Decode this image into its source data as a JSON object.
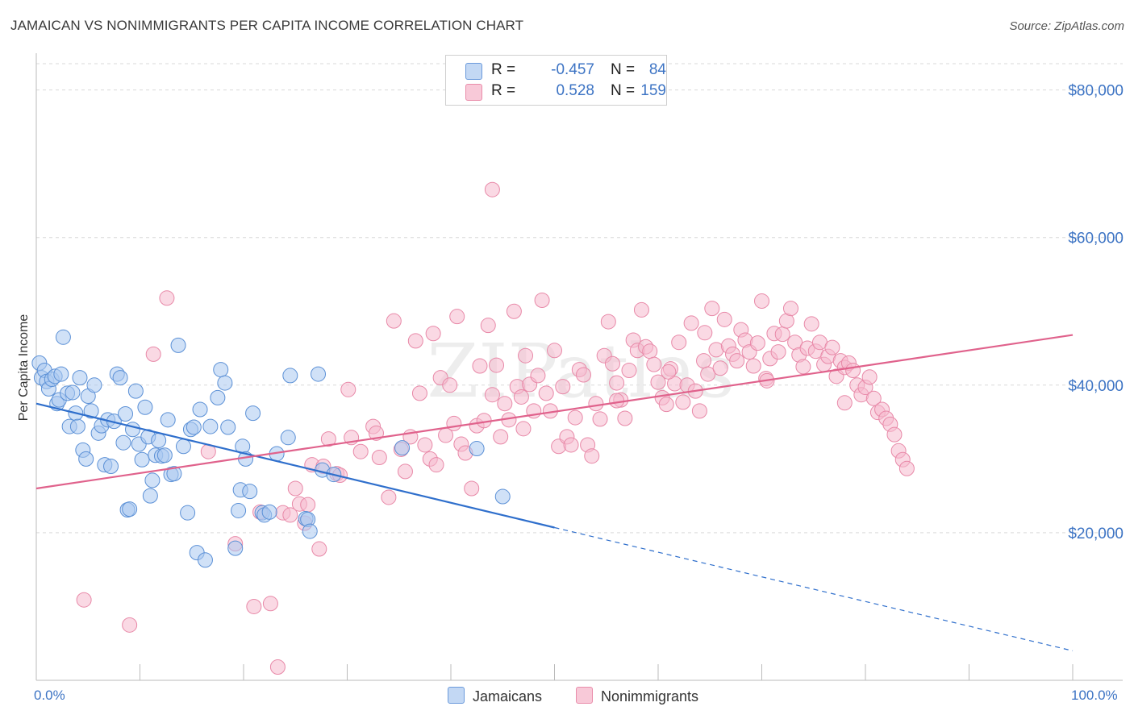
{
  "header": {
    "title": "JAMAICAN VS NONIMMIGRANTS PER CAPITA INCOME CORRELATION CHART",
    "source": "Source: ZipAtlas.com"
  },
  "legend_stats": [
    {
      "series": "Jamaicans",
      "r_label": "R =",
      "r_value": "-0.457",
      "n_label": "N =",
      "n_value": "84"
    },
    {
      "series": "Nonimmigrants",
      "r_label": "R =",
      "r_value": "0.528",
      "n_label": "N =",
      "n_value": "159"
    }
  ],
  "colors": {
    "jamaicans_fill": "#a9c8f0",
    "jamaicans_stroke": "#5b90d6",
    "jamaicans_line": "#2f6fcc",
    "nonimmigrants_fill": "#f6b9cd",
    "nonimmigrants_stroke": "#e889a8",
    "nonimmigrants_line": "#e0628c",
    "axis_label": "#3d74c4",
    "grid": "#d9d9d9"
  },
  "chart_data": {
    "type": "scatter",
    "xlabel": "",
    "ylabel": "Per Capita Income",
    "xlim": [
      0,
      100
    ],
    "ylim": [
      0,
      84000
    ],
    "x_tick_labels": [
      "0.0%",
      "100.0%"
    ],
    "y_ticks": [
      20000,
      40000,
      60000,
      80000
    ],
    "y_tick_labels": [
      "$20,000",
      "$40,000",
      "$60,000",
      "$80,000"
    ],
    "grid": true,
    "legend_position": "bottom-center",
    "watermark": "ZIPatlas",
    "series": [
      {
        "name": "Jamaicans",
        "trend": {
          "x": [
            0,
            50
          ],
          "y": [
            37500,
            20700
          ],
          "dashed_extension_to": [
            100,
            4000
          ]
        },
        "points": [
          [
            0.3,
            43000
          ],
          [
            0.5,
            41000
          ],
          [
            0.8,
            42000
          ],
          [
            1.0,
            40500
          ],
          [
            1.2,
            39500
          ],
          [
            1.5,
            40800
          ],
          [
            1.8,
            41200
          ],
          [
            2.0,
            37500
          ],
          [
            2.2,
            38000
          ],
          [
            2.4,
            41500
          ],
          [
            2.6,
            46500
          ],
          [
            3.0,
            38900
          ],
          [
            3.2,
            34400
          ],
          [
            3.5,
            39000
          ],
          [
            3.8,
            36200
          ],
          [
            4.0,
            34400
          ],
          [
            4.2,
            41000
          ],
          [
            4.5,
            31200
          ],
          [
            4.8,
            30000
          ],
          [
            5.0,
            38500
          ],
          [
            5.3,
            36500
          ],
          [
            5.6,
            40000
          ],
          [
            6.0,
            33500
          ],
          [
            6.3,
            34500
          ],
          [
            6.6,
            29200
          ],
          [
            6.9,
            35300
          ],
          [
            7.2,
            29000
          ],
          [
            7.5,
            35100
          ],
          [
            7.8,
            41500
          ],
          [
            8.1,
            41000
          ],
          [
            8.4,
            32200
          ],
          [
            8.6,
            36100
          ],
          [
            8.8,
            23100
          ],
          [
            9.0,
            23200
          ],
          [
            9.3,
            34000
          ],
          [
            9.6,
            39200
          ],
          [
            9.9,
            32000
          ],
          [
            10.2,
            29900
          ],
          [
            10.5,
            37000
          ],
          [
            10.8,
            33000
          ],
          [
            11.0,
            25000
          ],
          [
            11.2,
            27100
          ],
          [
            11.5,
            30500
          ],
          [
            11.8,
            32500
          ],
          [
            12.1,
            30400
          ],
          [
            12.4,
            30500
          ],
          [
            12.7,
            35300
          ],
          [
            13.0,
            27900
          ],
          [
            13.3,
            28000
          ],
          [
            13.7,
            45400
          ],
          [
            14.2,
            31700
          ],
          [
            14.6,
            22700
          ],
          [
            14.9,
            34000
          ],
          [
            15.2,
            34300
          ],
          [
            15.5,
            17300
          ],
          [
            15.8,
            36700
          ],
          [
            16.3,
            16300
          ],
          [
            16.8,
            34400
          ],
          [
            17.5,
            38300
          ],
          [
            17.8,
            42100
          ],
          [
            18.2,
            40300
          ],
          [
            18.5,
            34300
          ],
          [
            19.2,
            17900
          ],
          [
            19.5,
            23000
          ],
          [
            19.7,
            25800
          ],
          [
            19.9,
            31700
          ],
          [
            20.2,
            30000
          ],
          [
            20.6,
            25600
          ],
          [
            20.9,
            36200
          ],
          [
            21.8,
            22700
          ],
          [
            22.0,
            22400
          ],
          [
            23.2,
            30700
          ],
          [
            24.3,
            32900
          ],
          [
            24.5,
            41300
          ],
          [
            26.0,
            21900
          ],
          [
            26.2,
            21800
          ],
          [
            26.4,
            20200
          ],
          [
            27.2,
            41500
          ],
          [
            27.6,
            28500
          ],
          [
            28.7,
            27900
          ],
          [
            35.3,
            31500
          ],
          [
            42.5,
            31400
          ],
          [
            45.0,
            24900
          ],
          [
            22.5,
            22800
          ]
        ]
      },
      {
        "name": "Nonimmigrants",
        "trend": {
          "x": [
            0,
            100
          ],
          "y": [
            26000,
            46800
          ]
        },
        "points": [
          [
            4.6,
            10900
          ],
          [
            9.0,
            7500
          ],
          [
            11.3,
            44200
          ],
          [
            12.6,
            51800
          ],
          [
            16.6,
            31000
          ],
          [
            19.2,
            18500
          ],
          [
            21.0,
            10000
          ],
          [
            21.6,
            22800
          ],
          [
            22.6,
            10400
          ],
          [
            23.3,
            1800
          ],
          [
            23.8,
            22700
          ],
          [
            24.5,
            22400
          ],
          [
            25.0,
            26000
          ],
          [
            25.4,
            23900
          ],
          [
            25.9,
            21300
          ],
          [
            26.2,
            23800
          ],
          [
            26.6,
            29200
          ],
          [
            27.3,
            17800
          ],
          [
            27.7,
            29000
          ],
          [
            28.2,
            32700
          ],
          [
            29.0,
            28000
          ],
          [
            29.3,
            27800
          ],
          [
            30.1,
            39400
          ],
          [
            30.4,
            32900
          ],
          [
            31.3,
            31000
          ],
          [
            32.5,
            34400
          ],
          [
            32.8,
            33500
          ],
          [
            33.1,
            30200
          ],
          [
            34.0,
            24800
          ],
          [
            34.5,
            48700
          ],
          [
            35.2,
            31300
          ],
          [
            35.6,
            28300
          ],
          [
            36.1,
            33000
          ],
          [
            36.6,
            46000
          ],
          [
            37.0,
            38900
          ],
          [
            37.5,
            31900
          ],
          [
            38.0,
            30000
          ],
          [
            38.3,
            47000
          ],
          [
            38.6,
            29200
          ],
          [
            39.0,
            41000
          ],
          [
            39.5,
            33200
          ],
          [
            39.9,
            40000
          ],
          [
            40.3,
            34800
          ],
          [
            40.6,
            49300
          ],
          [
            41.0,
            32000
          ],
          [
            41.4,
            30800
          ],
          [
            42.0,
            26000
          ],
          [
            42.5,
            34500
          ],
          [
            42.8,
            42600
          ],
          [
            43.2,
            35200
          ],
          [
            43.6,
            48100
          ],
          [
            44.0,
            66500
          ],
          [
            44.4,
            42700
          ],
          [
            44.8,
            33000
          ],
          [
            45.2,
            37500
          ],
          [
            45.6,
            35300
          ],
          [
            46.1,
            50000
          ],
          [
            46.4,
            39800
          ],
          [
            46.8,
            38400
          ],
          [
            47.2,
            44000
          ],
          [
            47.6,
            40100
          ],
          [
            48.0,
            36500
          ],
          [
            48.4,
            41300
          ],
          [
            48.8,
            51500
          ],
          [
            49.2,
            38900
          ],
          [
            49.6,
            36500
          ],
          [
            50.0,
            44700
          ],
          [
            50.4,
            31700
          ],
          [
            50.8,
            39800
          ],
          [
            51.2,
            33000
          ],
          [
            51.6,
            31900
          ],
          [
            52.0,
            35600
          ],
          [
            52.4,
            42100
          ],
          [
            52.8,
            41400
          ],
          [
            53.2,
            31900
          ],
          [
            53.6,
            30400
          ],
          [
            54.0,
            37500
          ],
          [
            54.4,
            35400
          ],
          [
            54.8,
            44000
          ],
          [
            55.2,
            48600
          ],
          [
            55.6,
            42900
          ],
          [
            56.0,
            40300
          ],
          [
            56.4,
            38000
          ],
          [
            56.8,
            35500
          ],
          [
            57.2,
            42000
          ],
          [
            57.6,
            46100
          ],
          [
            58.0,
            44700
          ],
          [
            58.4,
            50200
          ],
          [
            58.8,
            45200
          ],
          [
            59.2,
            44600
          ],
          [
            59.6,
            42800
          ],
          [
            60.0,
            40400
          ],
          [
            60.4,
            38300
          ],
          [
            60.8,
            37400
          ],
          [
            61.2,
            42200
          ],
          [
            61.6,
            40200
          ],
          [
            62.0,
            45800
          ],
          [
            62.4,
            37700
          ],
          [
            62.8,
            40000
          ],
          [
            63.2,
            48400
          ],
          [
            63.6,
            39200
          ],
          [
            64.0,
            36500
          ],
          [
            64.4,
            43300
          ],
          [
            64.8,
            41500
          ],
          [
            65.2,
            50400
          ],
          [
            65.6,
            44800
          ],
          [
            66.0,
            42300
          ],
          [
            66.4,
            48900
          ],
          [
            66.8,
            45300
          ],
          [
            67.2,
            44200
          ],
          [
            67.6,
            43300
          ],
          [
            68.0,
            47500
          ],
          [
            68.4,
            46100
          ],
          [
            68.8,
            44500
          ],
          [
            69.2,
            42600
          ],
          [
            69.6,
            45700
          ],
          [
            70.0,
            51400
          ],
          [
            70.4,
            40900
          ],
          [
            70.8,
            43600
          ],
          [
            71.2,
            47000
          ],
          [
            71.6,
            44500
          ],
          [
            72.0,
            46900
          ],
          [
            72.4,
            48700
          ],
          [
            72.8,
            50400
          ],
          [
            73.2,
            45800
          ],
          [
            73.6,
            44100
          ],
          [
            74.0,
            42500
          ],
          [
            74.4,
            45000
          ],
          [
            74.8,
            48300
          ],
          [
            75.2,
            44600
          ],
          [
            75.6,
            45800
          ],
          [
            76.0,
            42800
          ],
          [
            76.4,
            43900
          ],
          [
            76.8,
            45100
          ],
          [
            77.2,
            41200
          ],
          [
            77.6,
            43300
          ],
          [
            78.0,
            42400
          ],
          [
            78.4,
            43000
          ],
          [
            78.8,
            42000
          ],
          [
            79.2,
            40000
          ],
          [
            79.6,
            38700
          ],
          [
            80.0,
            39700
          ],
          [
            80.4,
            41100
          ],
          [
            80.8,
            38200
          ],
          [
            81.2,
            36300
          ],
          [
            81.6,
            36700
          ],
          [
            82.0,
            35500
          ],
          [
            82.4,
            34700
          ],
          [
            82.8,
            33300
          ],
          [
            83.2,
            31100
          ],
          [
            83.6,
            29900
          ],
          [
            84.0,
            28700
          ],
          [
            61.0,
            41800
          ],
          [
            56.0,
            37900
          ],
          [
            47.0,
            34100
          ],
          [
            44.0,
            38700
          ],
          [
            70.5,
            40600
          ],
          [
            64.5,
            47100
          ],
          [
            78.0,
            37600
          ]
        ]
      }
    ]
  }
}
